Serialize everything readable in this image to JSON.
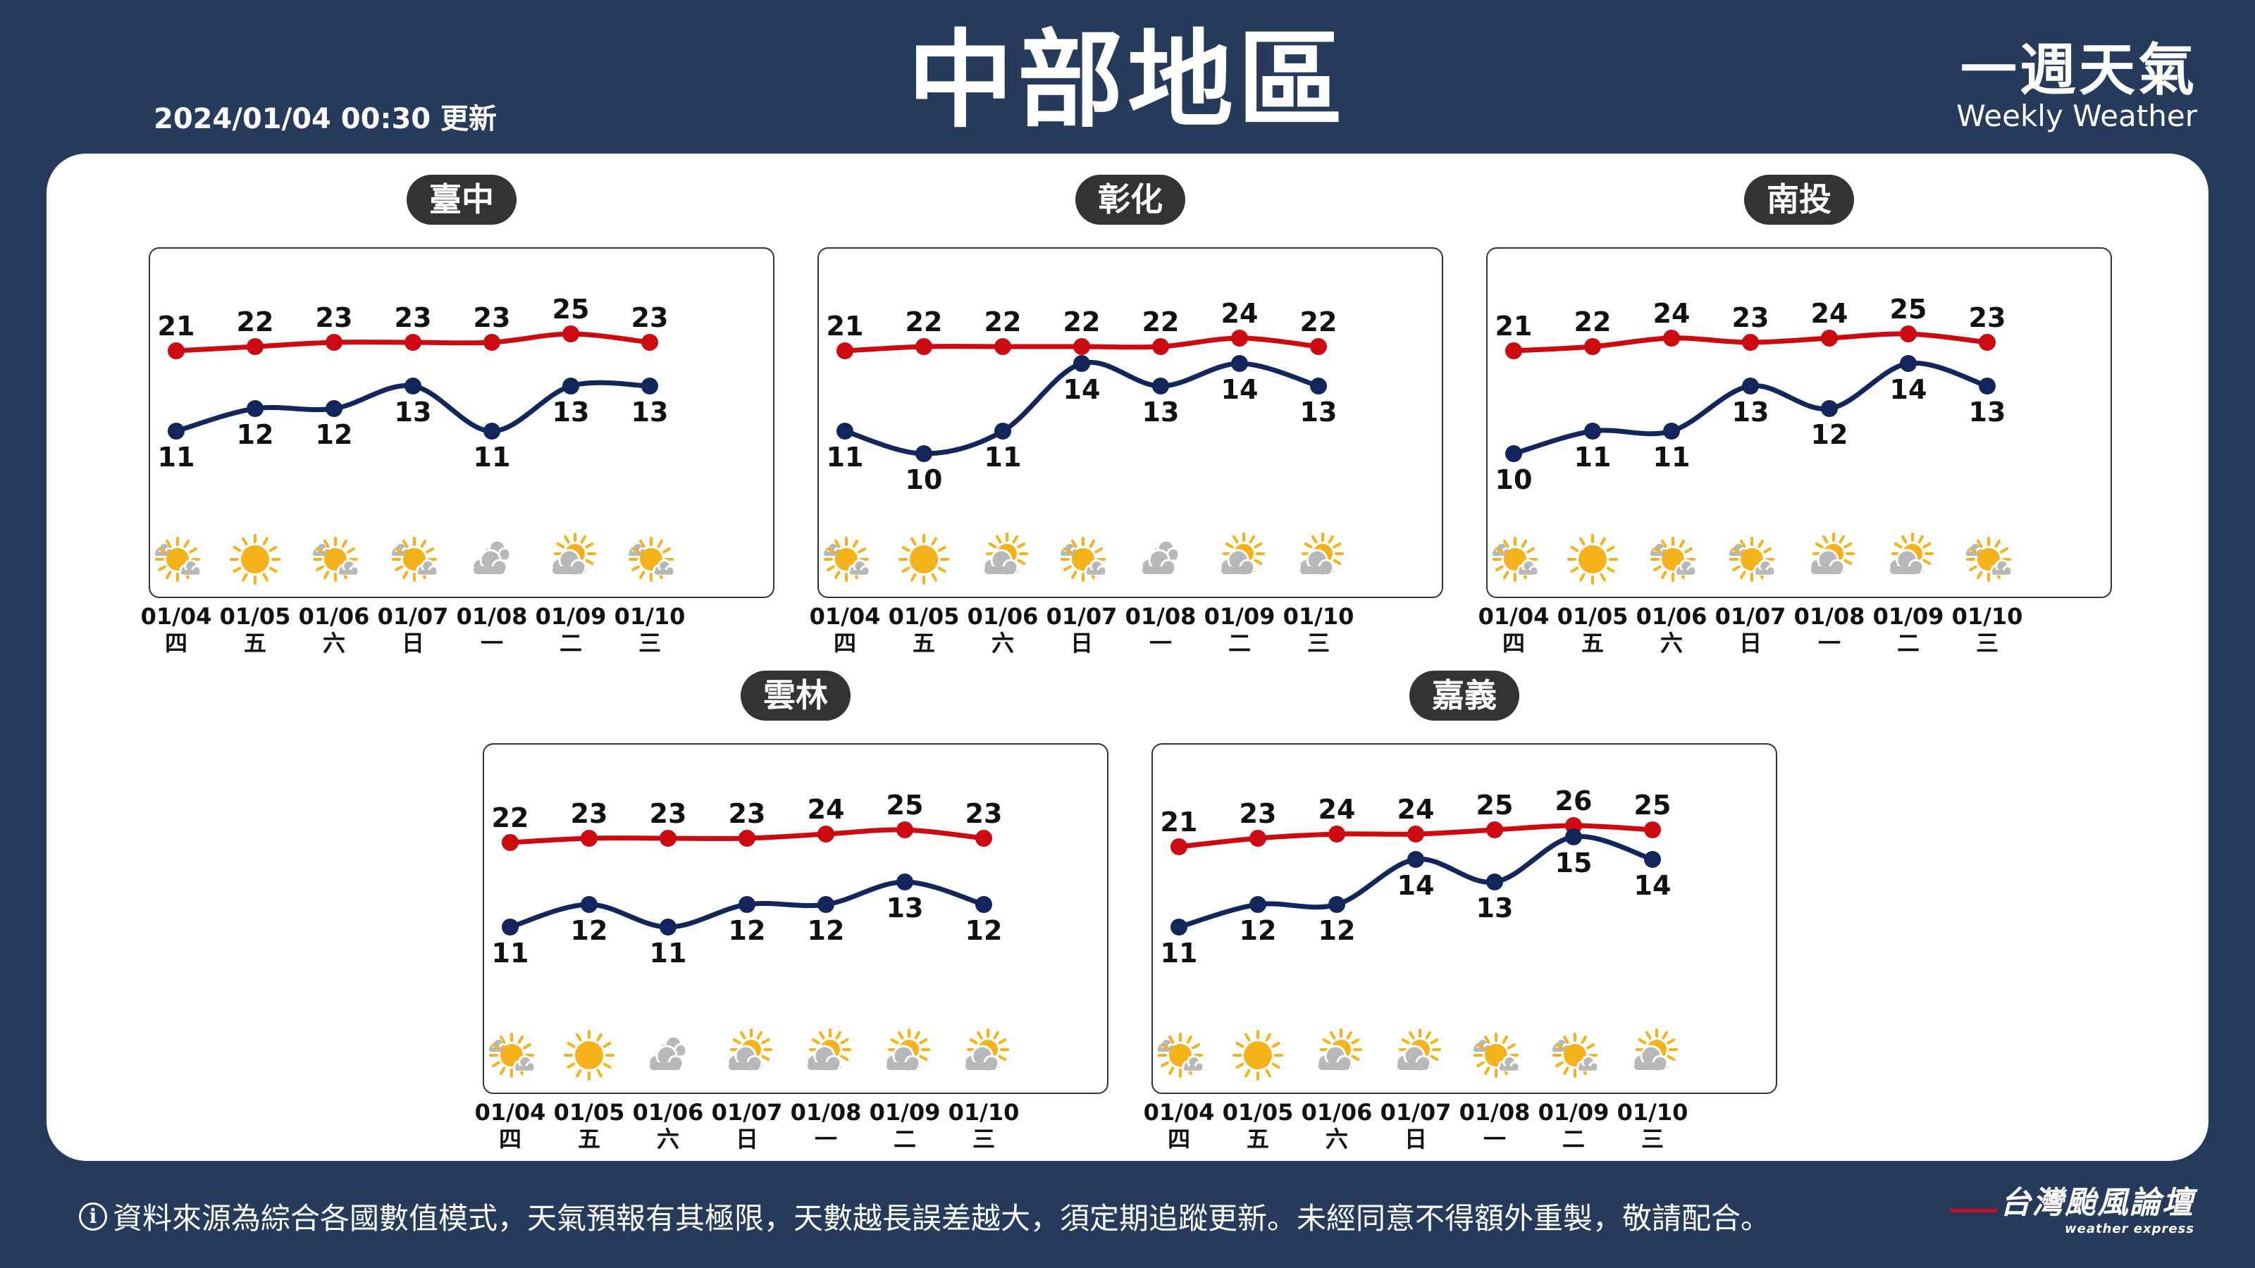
{
  "header": {
    "title": "中部地區",
    "update_time": "2024/01/04 00:30 更新",
    "brand_cn": "一週天氣",
    "brand_en": "Weekly Weather"
  },
  "colors": {
    "background": "#263A5C",
    "high": "#CC0A0F",
    "low": "#12265C",
    "sun": "#F5B21A",
    "cloud": "#B8B8B8"
  },
  "footer": {
    "info_icon": "info-icon",
    "disclaimer": "資料來源為綜合各國數值模式，天氣預報有其極限，天數越長誤差越大，須定期追蹤更新。未經同意不得額外重製，敬請配合。",
    "logo_cn": "台灣颱風論壇",
    "logo_en": "weather express"
  },
  "chart_data": [
    {
      "type": "line",
      "title": "臺中",
      "categories": [
        "01/04",
        "01/05",
        "01/06",
        "01/07",
        "01/08",
        "01/09",
        "01/10"
      ],
      "weekdays": [
        "四",
        "五",
        "六",
        "日",
        "一",
        "二",
        "三"
      ],
      "weather": [
        "partly-cloudy",
        "sunny",
        "partly-cloudy",
        "partly-cloudy",
        "cloudy",
        "mostly-cloudy",
        "partly-cloudy"
      ],
      "series": [
        {
          "values": [
            21,
            22,
            23,
            23,
            23,
            25,
            23
          ]
        },
        {
          "values": [
            11,
            12,
            12,
            13,
            11,
            13,
            13
          ]
        }
      ]
    },
    {
      "type": "line",
      "title": "彰化",
      "categories": [
        "01/04",
        "01/05",
        "01/06",
        "01/07",
        "01/08",
        "01/09",
        "01/10"
      ],
      "weekdays": [
        "四",
        "五",
        "六",
        "日",
        "一",
        "二",
        "三"
      ],
      "weather": [
        "partly-cloudy",
        "sunny",
        "mostly-cloudy",
        "partly-cloudy",
        "cloudy",
        "mostly-cloudy",
        "mostly-cloudy"
      ],
      "series": [
        {
          "values": [
            21,
            22,
            22,
            22,
            22,
            24,
            22
          ]
        },
        {
          "values": [
            11,
            10,
            11,
            14,
            13,
            14,
            13
          ]
        }
      ]
    },
    {
      "type": "line",
      "title": "南投",
      "categories": [
        "01/04",
        "01/05",
        "01/06",
        "01/07",
        "01/08",
        "01/09",
        "01/10"
      ],
      "weekdays": [
        "四",
        "五",
        "六",
        "日",
        "一",
        "二",
        "三"
      ],
      "weather": [
        "partly-cloudy",
        "sunny",
        "partly-cloudy",
        "partly-cloudy",
        "mostly-cloudy",
        "mostly-cloudy",
        "partly-cloudy"
      ],
      "series": [
        {
          "values": [
            21,
            22,
            24,
            23,
            24,
            25,
            23
          ]
        },
        {
          "values": [
            10,
            11,
            11,
            13,
            12,
            14,
            13
          ]
        }
      ]
    },
    {
      "type": "line",
      "title": "雲林",
      "categories": [
        "01/04",
        "01/05",
        "01/06",
        "01/07",
        "01/08",
        "01/09",
        "01/10"
      ],
      "weekdays": [
        "四",
        "五",
        "六",
        "日",
        "一",
        "二",
        "三"
      ],
      "weather": [
        "partly-cloudy",
        "sunny",
        "cloudy",
        "mostly-cloudy",
        "mostly-cloudy",
        "mostly-cloudy",
        "mostly-cloudy"
      ],
      "series": [
        {
          "values": [
            22,
            23,
            23,
            23,
            24,
            25,
            23
          ]
        },
        {
          "values": [
            11,
            12,
            11,
            12,
            12,
            13,
            12
          ]
        }
      ]
    },
    {
      "type": "line",
      "title": "嘉義",
      "categories": [
        "01/04",
        "01/05",
        "01/06",
        "01/07",
        "01/08",
        "01/09",
        "01/10"
      ],
      "weekdays": [
        "四",
        "五",
        "六",
        "日",
        "一",
        "二",
        "三"
      ],
      "weather": [
        "partly-cloudy",
        "sunny",
        "mostly-cloudy",
        "mostly-cloudy",
        "partly-cloudy",
        "partly-cloudy",
        "mostly-cloudy"
      ],
      "series": [
        {
          "values": [
            21,
            23,
            24,
            24,
            25,
            26,
            25
          ]
        },
        {
          "values": [
            11,
            12,
            12,
            14,
            13,
            15,
            14
          ]
        }
      ]
    }
  ]
}
